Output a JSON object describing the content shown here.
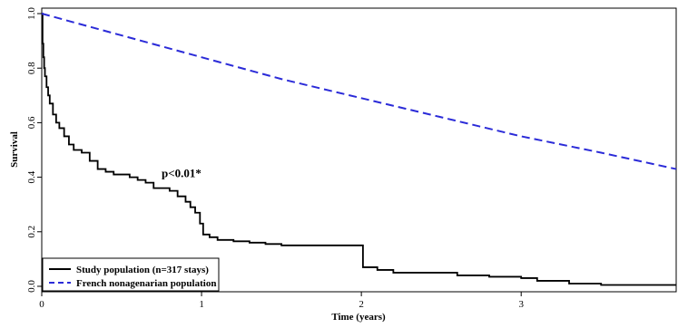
{
  "chart_data": {
    "type": "line",
    "xlabel": "Time (years)",
    "ylabel": "Survival",
    "xlim": [
      0,
      3.97
    ],
    "ylim": [
      -0.02,
      1.02
    ],
    "grid": false,
    "x_ticks": [
      0,
      1,
      2,
      3
    ],
    "x_tick_labels": [
      "0",
      "1",
      "2",
      "3"
    ],
    "y_ticks": [
      0.0,
      0.2,
      0.4,
      0.6,
      0.8,
      1.0
    ],
    "y_tick_labels": [
      "0.0",
      "0.2",
      "0.4",
      "0.6",
      "0.8",
      "1.0"
    ],
    "legend_position": "bottom-left",
    "annotations": [
      {
        "text": "p<0.01*",
        "x": 0.75,
        "y": 0.4
      }
    ],
    "series": [
      {
        "name": "Study population (n=317 stays)",
        "color": "#000000",
        "style": "solid-step",
        "x": [
          0,
          0.005,
          0.01,
          0.015,
          0.02,
          0.03,
          0.04,
          0.05,
          0.07,
          0.09,
          0.11,
          0.14,
          0.17,
          0.2,
          0.25,
          0.3,
          0.35,
          0.4,
          0.45,
          0.5,
          0.55,
          0.6,
          0.65,
          0.7,
          0.75,
          0.8,
          0.85,
          0.9,
          0.93,
          0.96,
          0.99,
          1.01,
          1.05,
          1.1,
          1.2,
          1.3,
          1.4,
          1.5,
          1.6,
          1.7,
          1.8,
          1.9,
          1.99,
          2.01,
          2.1,
          2.2,
          2.4,
          2.6,
          2.8,
          3.0,
          3.1,
          3.3,
          3.5,
          3.7,
          3.97
        ],
        "y": [
          1.0,
          0.89,
          0.84,
          0.8,
          0.77,
          0.73,
          0.7,
          0.67,
          0.63,
          0.6,
          0.58,
          0.55,
          0.52,
          0.5,
          0.49,
          0.46,
          0.43,
          0.42,
          0.41,
          0.41,
          0.4,
          0.39,
          0.38,
          0.36,
          0.36,
          0.35,
          0.33,
          0.31,
          0.29,
          0.27,
          0.23,
          0.19,
          0.18,
          0.17,
          0.165,
          0.16,
          0.155,
          0.15,
          0.15,
          0.15,
          0.15,
          0.15,
          0.15,
          0.07,
          0.06,
          0.05,
          0.05,
          0.04,
          0.035,
          0.03,
          0.02,
          0.01,
          0.005,
          0.005,
          0.005
        ]
      },
      {
        "name": "French nonagenarian population",
        "color": "#2b2bd8",
        "style": "dashed",
        "x": [
          0,
          0.5,
          1.0,
          1.5,
          2.0,
          2.5,
          3.0,
          3.5,
          3.97
        ],
        "y": [
          1.0,
          0.92,
          0.84,
          0.76,
          0.69,
          0.62,
          0.55,
          0.49,
          0.43
        ]
      }
    ]
  }
}
